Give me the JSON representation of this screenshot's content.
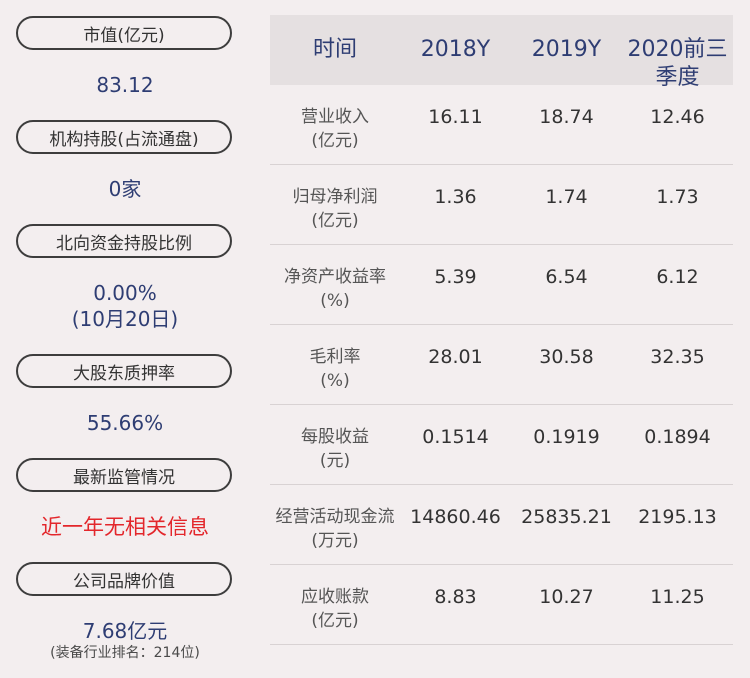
{
  "left": {
    "items": [
      {
        "label": "市值(亿元)",
        "value": "83.12"
      },
      {
        "label": "机构持股(占流通盘)",
        "value": "0家"
      },
      {
        "label": "北向资金持股比例",
        "value": "0.00%",
        "value2": "(10月20日)"
      },
      {
        "label": "大股东质押率",
        "value": "55.66%"
      },
      {
        "label": "最新监管情况",
        "value": "近一年无相关信息"
      },
      {
        "label": "公司品牌价值",
        "value": "7.68亿元",
        "note": "(装备行业排名：214位)"
      }
    ]
  },
  "table": {
    "headers": [
      "时间",
      "2018Y",
      "2019Y",
      "2020前三季度"
    ],
    "rows": [
      {
        "label1": "营业收入",
        "label2": "(亿元)",
        "values": [
          "16.11",
          "18.74",
          "12.46"
        ]
      },
      {
        "label1": "归母净利润",
        "label2": "(亿元)",
        "values": [
          "1.36",
          "1.74",
          "1.73"
        ]
      },
      {
        "label1": "净资产收益率",
        "label2": "(%)",
        "values": [
          "5.39",
          "6.54",
          "6.12"
        ]
      },
      {
        "label1": "毛利率",
        "label2": "(%)",
        "values": [
          "28.01",
          "30.58",
          "32.35"
        ]
      },
      {
        "label1": "每股收益",
        "label2": "(元)",
        "values": [
          "0.1514",
          "0.1919",
          "0.1894"
        ]
      },
      {
        "label1": "经营活动现金流",
        "label2": "(万元)",
        "values": [
          "14860.46",
          "25835.21",
          "2195.13"
        ]
      },
      {
        "label1": "应收账款",
        "label2": "(亿元)",
        "values": [
          "8.83",
          "10.27",
          "11.25"
        ]
      }
    ]
  }
}
